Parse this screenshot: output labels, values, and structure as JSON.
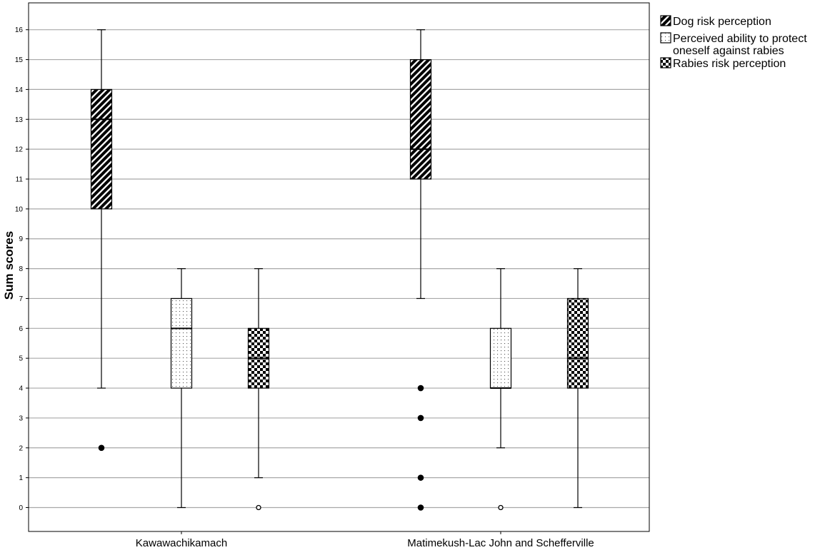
{
  "chart_data": {
    "type": "boxplot",
    "title": "",
    "xlabel": "",
    "ylabel": "Sum scores",
    "ylim": [
      -0.8,
      16.9
    ],
    "yticks": [
      0,
      1,
      2,
      3,
      4,
      5,
      6,
      7,
      8,
      9,
      10,
      11,
      12,
      13,
      14,
      15,
      16
    ],
    "grid": "horizontal",
    "legend_position": "top-right outside",
    "categories": [
      "Kawawachikamach",
      "Matimekush-Lac John and Schefferville"
    ],
    "series": [
      {
        "name": "Dog risk perception",
        "pattern": "diagonal-hatch",
        "boxes": [
          {
            "min": 4,
            "q1": 10,
            "median": 13,
            "q3": 14,
            "max": 16,
            "outliers": [
              2
            ],
            "extremes": []
          },
          {
            "min": 7,
            "q1": 11,
            "median": 12,
            "q3": 15,
            "max": 16,
            "outliers": [
              0,
              1,
              3,
              4
            ],
            "extremes": []
          }
        ]
      },
      {
        "name": "Perceived ability to protect oneself against rabies",
        "pattern": "dotted",
        "boxes": [
          {
            "min": 0,
            "q1": 4,
            "median": 6,
            "q3": 7,
            "max": 8,
            "outliers": [],
            "extremes": []
          },
          {
            "min": 2,
            "q1": 4,
            "median": 4,
            "q3": 6,
            "max": 8,
            "outliers": [],
            "extremes": [
              0
            ]
          }
        ]
      },
      {
        "name": "Rabies risk perception",
        "pattern": "checkerboard",
        "boxes": [
          {
            "min": 1,
            "q1": 4,
            "median": 5,
            "q3": 6,
            "max": 8,
            "outliers": [],
            "extremes": [
              0
            ]
          },
          {
            "min": 0,
            "q1": 4,
            "median": 5,
            "q3": 7,
            "max": 8,
            "outliers": [],
            "extremes": []
          }
        ]
      }
    ],
    "legend_lines": [
      [
        "Dog risk perception"
      ],
      [
        "Perceived ability to protect",
        "oneself against rabies"
      ],
      [
        "Rabies risk perception"
      ]
    ],
    "colors": {
      "box_fill": "#ffffff",
      "pattern_dark": "#000000",
      "gridline": "#a8a8a8",
      "axis": "#000000"
    }
  }
}
